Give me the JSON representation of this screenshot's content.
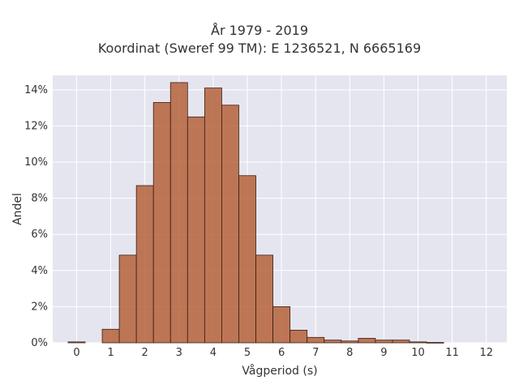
{
  "title_lines": [
    "År 1979 - 2019",
    "Koordinat (Sweref 99 TM): E 1236521, N 6665169"
  ],
  "chart_data": {
    "type": "bar",
    "xlabel": "Vågperiod (s)",
    "ylabel": "Andel",
    "xlim": [
      -0.7,
      12.6
    ],
    "ylim": [
      0,
      14.8
    ],
    "x_ticks": [
      0,
      1,
      2,
      3,
      4,
      5,
      6,
      7,
      8,
      9,
      10,
      11,
      12
    ],
    "y_ticks": [
      0,
      2,
      4,
      6,
      8,
      10,
      12,
      14
    ],
    "y_tick_labels": [
      "0%",
      "2%",
      "4%",
      "6%",
      "8%",
      "10%",
      "12%",
      "14%"
    ],
    "bin_width": 0.5,
    "bins": [
      {
        "x0": -0.25,
        "value": 0.05
      },
      {
        "x0": 0.25,
        "value": 0.0
      },
      {
        "x0": 0.75,
        "value": 0.75
      },
      {
        "x0": 1.25,
        "value": 4.85
      },
      {
        "x0": 1.75,
        "value": 8.7
      },
      {
        "x0": 2.25,
        "value": 13.3
      },
      {
        "x0": 2.75,
        "value": 14.4
      },
      {
        "x0": 3.25,
        "value": 12.5
      },
      {
        "x0": 3.75,
        "value": 14.1
      },
      {
        "x0": 4.25,
        "value": 13.15
      },
      {
        "x0": 4.75,
        "value": 9.25
      },
      {
        "x0": 5.25,
        "value": 4.85
      },
      {
        "x0": 5.75,
        "value": 2.0
      },
      {
        "x0": 6.25,
        "value": 0.7
      },
      {
        "x0": 6.75,
        "value": 0.3
      },
      {
        "x0": 7.25,
        "value": 0.15
      },
      {
        "x0": 7.75,
        "value": 0.1
      },
      {
        "x0": 8.25,
        "value": 0.25
      },
      {
        "x0": 8.75,
        "value": 0.15
      },
      {
        "x0": 9.25,
        "value": 0.15
      },
      {
        "x0": 9.75,
        "value": 0.05
      },
      {
        "x0": 10.25,
        "value": 0.02
      }
    ],
    "bar_color": "#b5633a",
    "bar_opacity": 0.85,
    "bar_edge_color": "#3a1f12",
    "plot_background": "#e5e5f0",
    "grid": true,
    "grid_color": "#ffffff"
  }
}
